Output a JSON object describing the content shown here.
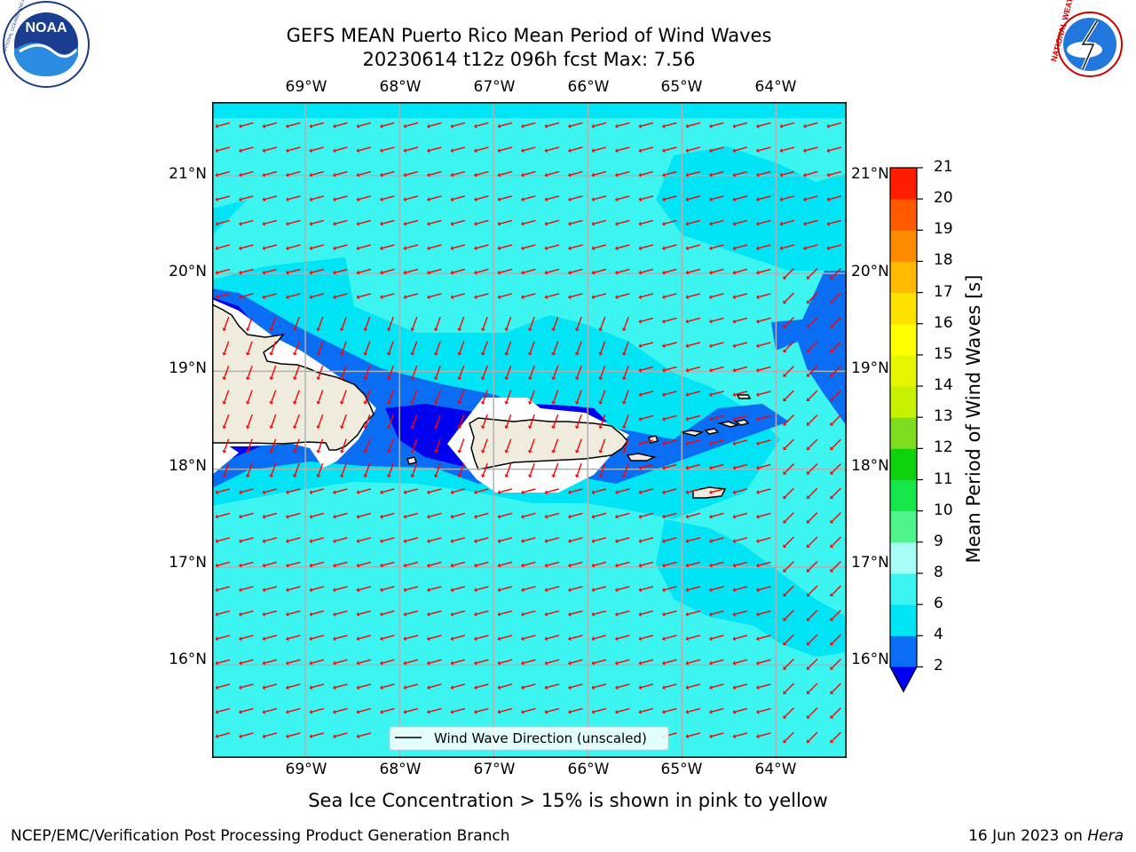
{
  "header": {
    "title_line1": "GEFS MEAN Puerto Rico Mean Period of Wind Waves",
    "title_line2": "20230614 t12z 096h fcst   Max: 7.56"
  },
  "logos": {
    "left": {
      "text": "NOAA",
      "ring_text": "NATIONAL OCEANIC AND ATMOSPHERIC ADMINISTRATION",
      "ring_text_bottom": "U.S. DEPARTMENT OF COMMERCE",
      "icon": "noaa-logo"
    },
    "right": {
      "ring_text": "NATIONAL WEATHER SERVICE",
      "icon": "nws-logo"
    }
  },
  "map": {
    "x_ticks": [
      "69°W",
      "68°W",
      "67°W",
      "66°W",
      "65°W",
      "64°W"
    ],
    "y_ticks": [
      "21°N",
      "20°N",
      "19°N",
      "18°N",
      "17°N",
      "16°N"
    ],
    "extent": {
      "lon_min": -69.99,
      "lon_max": -63.25,
      "lat_min": 15.05,
      "lat_max": 21.75
    },
    "grid": true,
    "legend": {
      "label": "Wind Wave Direction (unscaled)",
      "placement": "bottom-center"
    },
    "arrow_color": "#ff0000",
    "land_color": "#efecdd",
    "ocean_default_class": "6-8",
    "features": [
      "Hispaniola (east)",
      "Puerto Rico",
      "Virgin Islands",
      "St. Croix",
      "Mona Island"
    ]
  },
  "colorbar": {
    "label": "Mean Period of Wind Waves [s]",
    "ticks": [
      "2",
      "4",
      "6",
      "8",
      "9",
      "10",
      "11",
      "12",
      "13",
      "14",
      "15",
      "16",
      "17",
      "18",
      "19",
      "20",
      "21"
    ],
    "colors": [
      "#0a6ef5",
      "#00e5f5",
      "#3df5f0",
      "#a8fff5",
      "#4ff58a",
      "#15e64a",
      "#0fd20f",
      "#7ddc1e",
      "#c6f000",
      "#e6f500",
      "#ffff00",
      "#ffe100",
      "#ffb900",
      "#ff8c00",
      "#ff5a00",
      "#ff1e00"
    ],
    "under_color": "#0000f0",
    "extend": "min"
  },
  "footer": {
    "caption": "Sea Ice Concentration > 15% is shown in pink to yellow",
    "credit_left": "NCEP/EMC/Verification Post Processing Product Generation Branch",
    "credit_right_prefix": "16 Jun 2023 on ",
    "credit_right_host": "Hera"
  }
}
